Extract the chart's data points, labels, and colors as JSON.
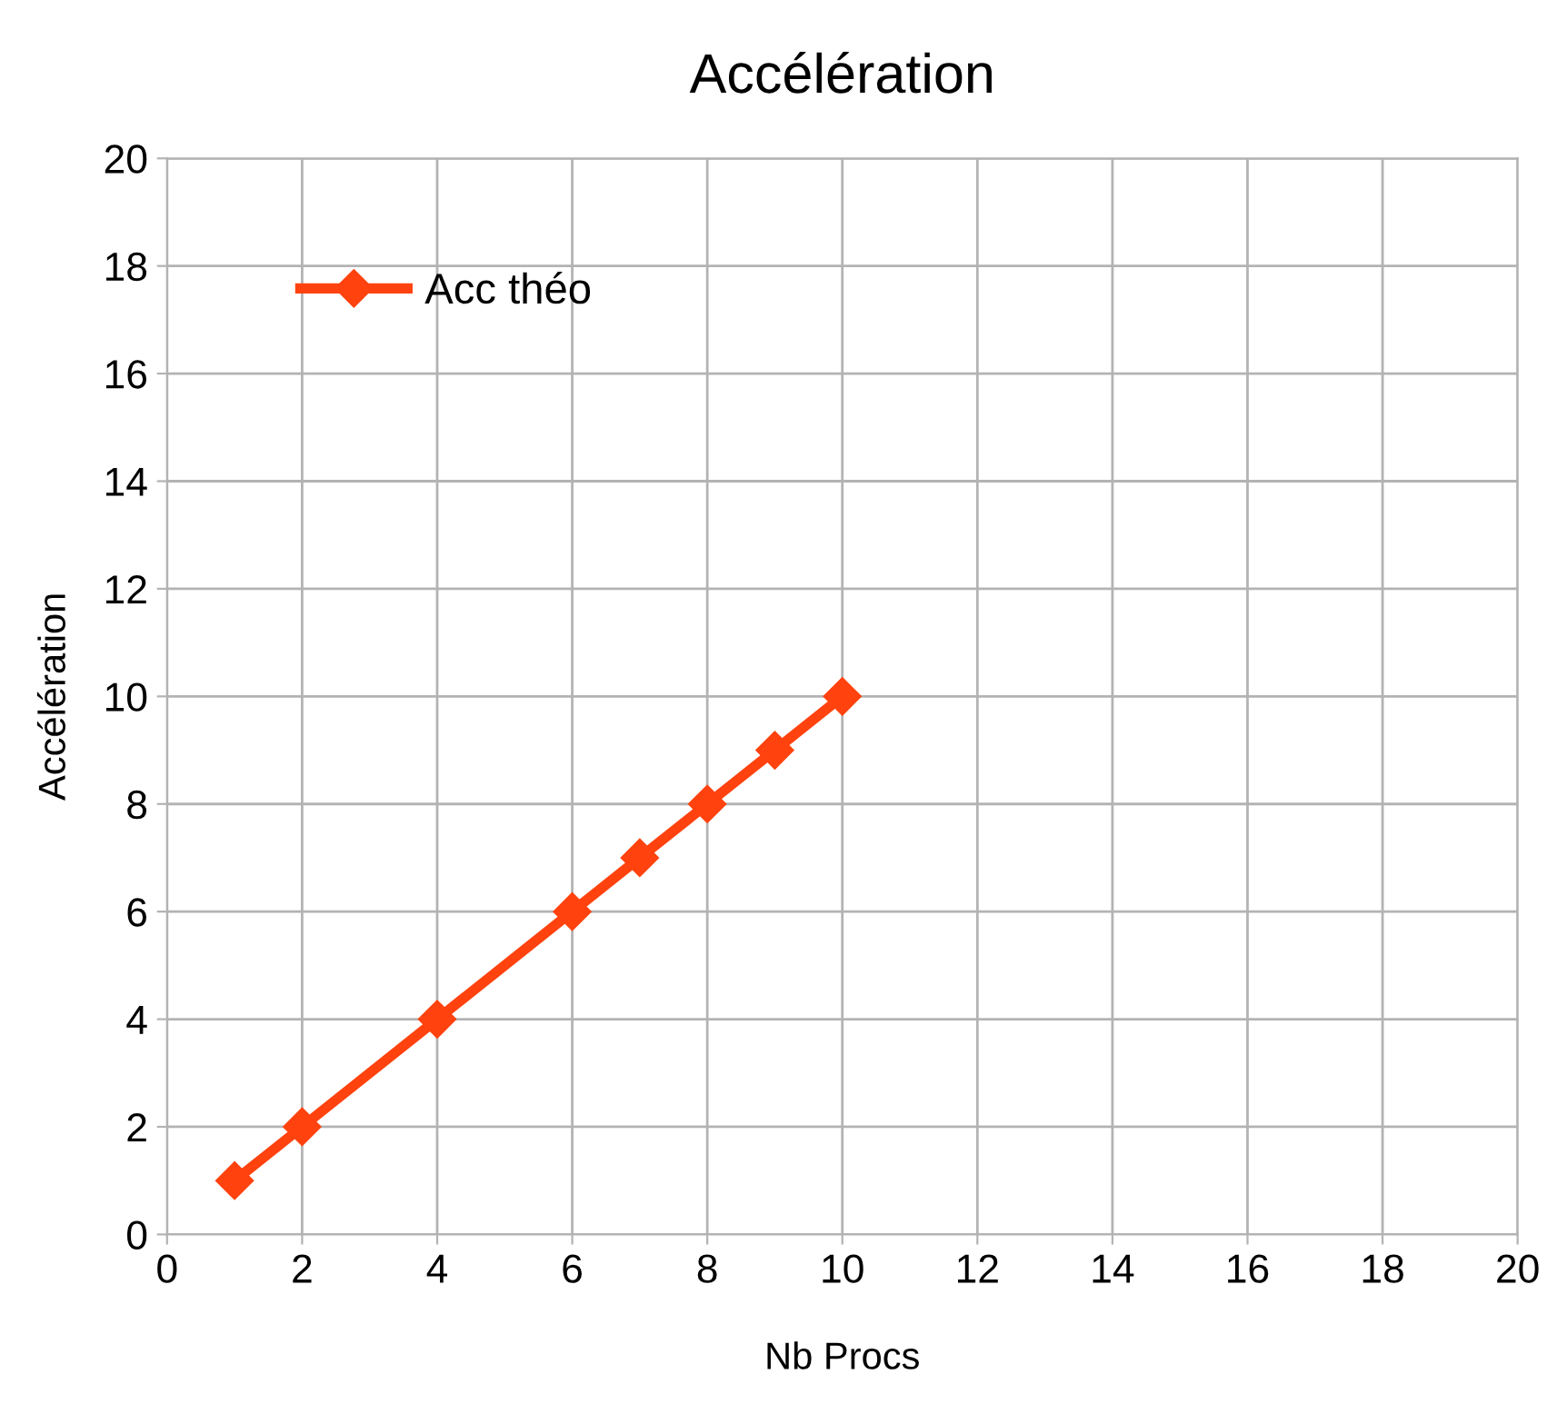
{
  "chart_data": {
    "type": "line",
    "title": "Accélération",
    "xlabel": "Nb Procs",
    "ylabel": "Accélération",
    "x": [
      1,
      2,
      4,
      6,
      7,
      8,
      9,
      10
    ],
    "series": [
      {
        "name": "Acc théo",
        "color": "#ff420e",
        "values": [
          1,
          2,
          4,
          6,
          7,
          8,
          9,
          10
        ]
      }
    ],
    "xlim": [
      0,
      20
    ],
    "ylim": [
      0,
      20
    ],
    "xticks": [
      0,
      2,
      4,
      6,
      8,
      10,
      12,
      14,
      16,
      18,
      20
    ],
    "yticks": [
      0,
      2,
      4,
      6,
      8,
      10,
      12,
      14,
      16,
      18,
      20
    ],
    "grid": true,
    "legend": "top left",
    "marker": "diamond",
    "line_style": "solid"
  }
}
